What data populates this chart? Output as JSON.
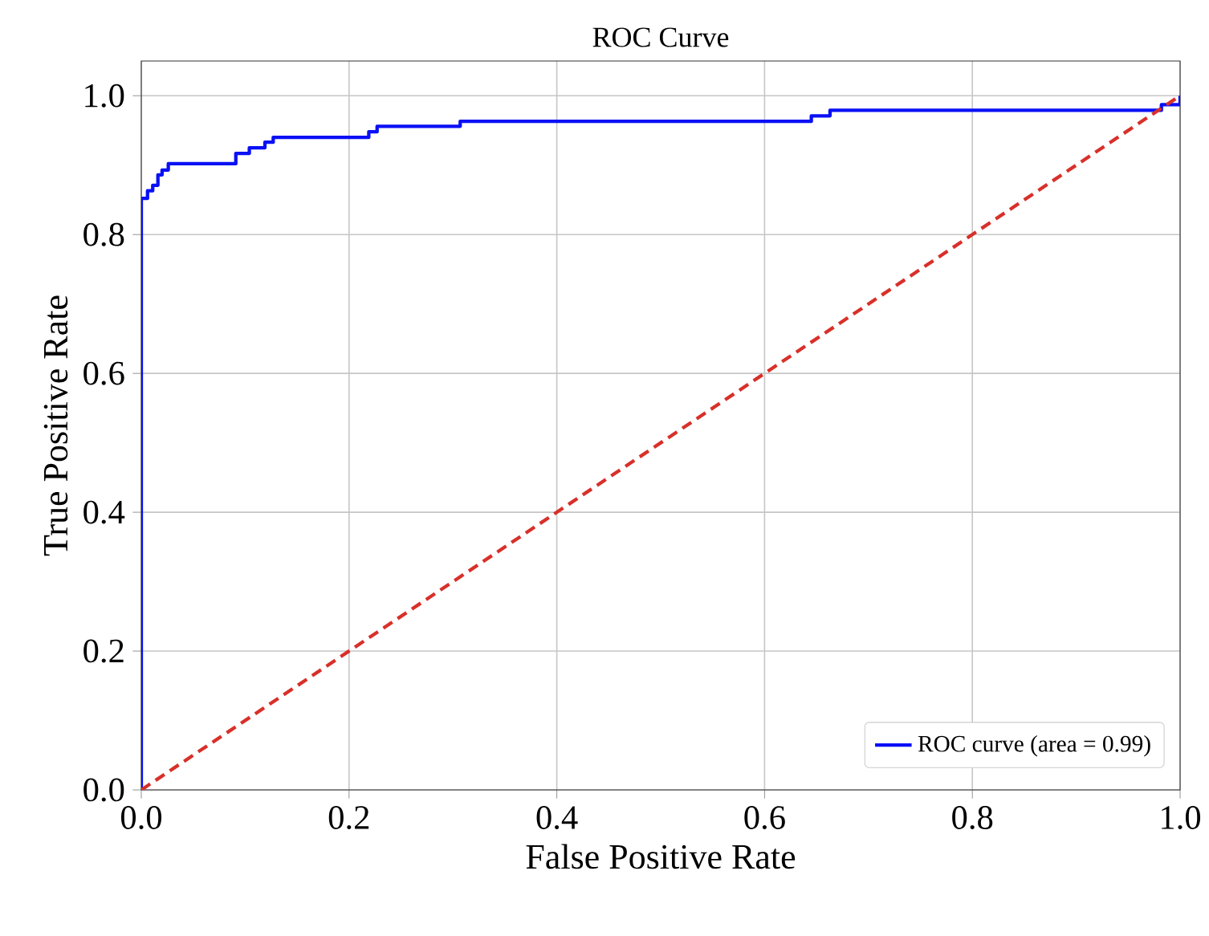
{
  "chart_data": {
    "type": "line",
    "title": "ROC Curve",
    "xlabel": "False Positive Rate",
    "ylabel": "True Positive Rate",
    "xlim": [
      0,
      1
    ],
    "ylim": [
      0,
      1.05
    ],
    "xticks": [
      {
        "value": 0,
        "label": "0.0"
      },
      0.2,
      0.4,
      0.6,
      0.8,
      {
        "value": 1,
        "label": "1.0"
      }
    ],
    "yticks": [
      {
        "value": 0,
        "label": "0.0"
      },
      0.2,
      0.4,
      0.6,
      0.8,
      {
        "value": 1,
        "label": "1.0"
      }
    ],
    "grid": true,
    "legend": "bottom right",
    "series": [
      {
        "name": "ROC curve (area = 0.99)",
        "type": "step",
        "color": "#0a10f5",
        "line_style": "solid",
        "x": [
          0,
          0,
          0.006,
          0.011,
          0.016,
          0.02,
          0.026,
          0.091,
          0.104,
          0.119,
          0.127,
          0.219,
          0.227,
          0.307,
          0.645,
          0.663,
          0.982,
          1,
          1
        ],
        "values": [
          0,
          0.852,
          0.863,
          0.871,
          0.886,
          0.893,
          0.902,
          0.917,
          0.925,
          0.933,
          0.94,
          0.948,
          0.956,
          0.963,
          0.971,
          0.979,
          0.987,
          0.987,
          1.0
        ]
      },
      {
        "color": "#d8302a",
        "line_style": "dashed",
        "x": [
          0,
          1
        ],
        "values": [
          0,
          1
        ]
      }
    ]
  }
}
